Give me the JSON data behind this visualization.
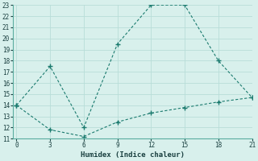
{
  "x": [
    0,
    3,
    6,
    9,
    12,
    15,
    18,
    21
  ],
  "y_upper": [
    14,
    17.5,
    12,
    19.5,
    23,
    23,
    18,
    14.7
  ],
  "y_lower": [
    14,
    11.8,
    11.2,
    12.5,
    13.3,
    13.8,
    14.3,
    14.7
  ],
  "line_color": "#1a7a6e",
  "bg_color": "#d8f0ec",
  "grid_color": "#b8ddd8",
  "xlabel": "Humidex (Indice chaleur)",
  "ylim": [
    11,
    23
  ],
  "xlim": [
    0,
    21
  ],
  "yticks": [
    11,
    12,
    13,
    14,
    15,
    16,
    17,
    18,
    19,
    20,
    21,
    22,
    23
  ],
  "xticks": [
    0,
    3,
    6,
    9,
    12,
    15,
    18,
    21
  ]
}
